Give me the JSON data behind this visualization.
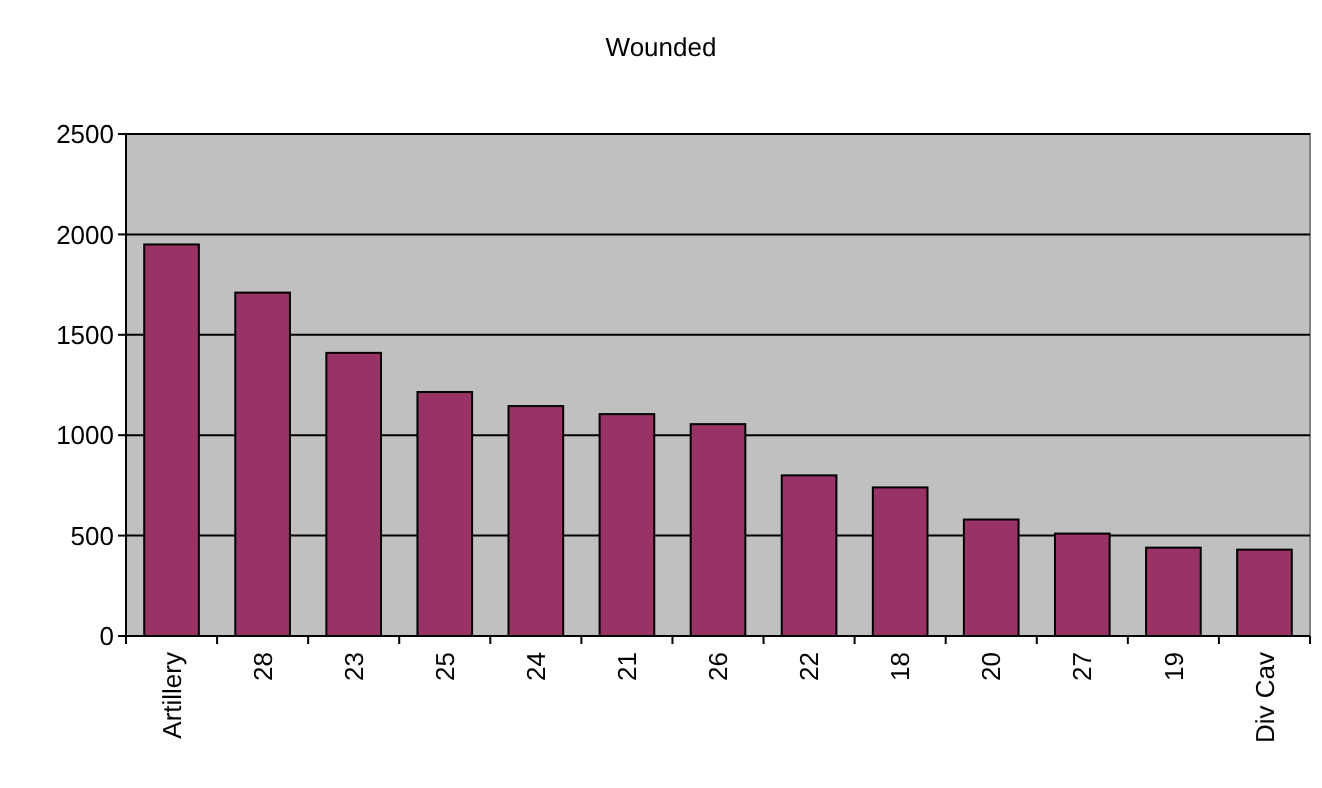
{
  "chart_data": {
    "type": "bar",
    "title": "Wounded",
    "categories": [
      "Artillery",
      "28",
      "23",
      "25",
      "24",
      "21",
      "26",
      "22",
      "18",
      "20",
      "27",
      "19",
      "Div Cav"
    ],
    "values": [
      1950,
      1710,
      1410,
      1215,
      1145,
      1105,
      1055,
      800,
      740,
      580,
      510,
      440,
      430
    ],
    "color": "#993366",
    "ylim": [
      0,
      2500
    ],
    "yticks": [
      0,
      500,
      1000,
      1500,
      2000,
      2500
    ],
    "grid": "y"
  }
}
